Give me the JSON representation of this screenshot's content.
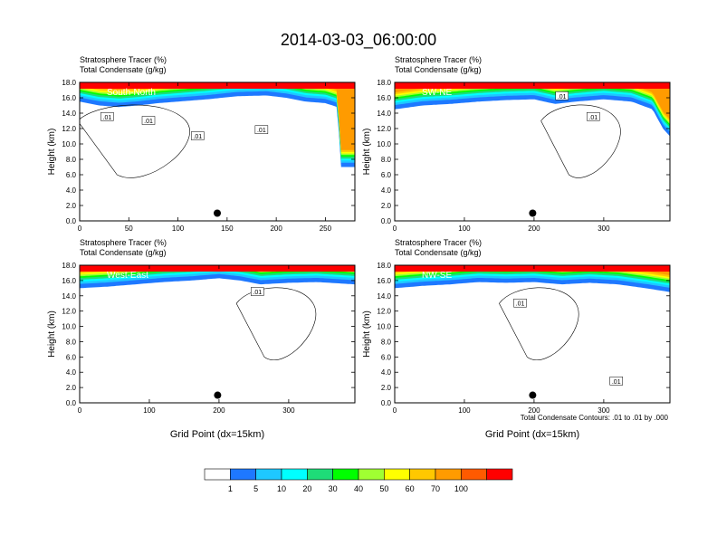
{
  "main_title": "2014-03-03_06:00:00",
  "footnote": "Total Condensate Contours: .01 to .01 by .000",
  "colorbar": {
    "levels": [
      "1",
      "5",
      "10",
      "20",
      "30",
      "40",
      "50",
      "60",
      "70",
      "100"
    ],
    "colors": [
      "#ffffff",
      "#1e78ff",
      "#1ec8ff",
      "#00ffff",
      "#1edc78",
      "#00ff00",
      "#a0ff32",
      "#ffff00",
      "#ffc800",
      "#ff9b00",
      "#ff5a00",
      "#ff0000"
    ]
  },
  "chart_data": [
    {
      "type": "heatmap",
      "label": "South-North",
      "title_lines": [
        "Stratosphere Tracer   (%)",
        "Total Condensate   (g/kg)"
      ],
      "ylabel": "Height (km)",
      "xlabel": "",
      "xlim": [
        0,
        280
      ],
      "ylim": [
        0,
        18
      ],
      "xticks": [
        "0",
        "50",
        "100",
        "150",
        "200",
        "250"
      ],
      "xtick_values": [
        0,
        50,
        100,
        150,
        200,
        250
      ],
      "yticks": [
        "0.0",
        "2.0",
        "4.0",
        "6.0",
        "8.0",
        "10.0",
        "12.0",
        "14.0",
        "16.0",
        "18.0"
      ],
      "contour_labels": [
        ".01",
        ".01",
        ".01",
        ".01"
      ],
      "contour_label_pos": [
        [
          28,
          13.5
        ],
        [
          70,
          13
        ],
        [
          120,
          11
        ],
        [
          185,
          11.8
        ]
      ],
      "marker": [
        140,
        1
      ],
      "tracer_bottom": [
        [
          0,
          15.5
        ],
        [
          20,
          15.0
        ],
        [
          40,
          14.8
        ],
        [
          60,
          15.0
        ],
        [
          80,
          15.3
        ],
        [
          100,
          15.5
        ],
        [
          130,
          15.8
        ],
        [
          160,
          16.2
        ],
        [
          190,
          16.3
        ],
        [
          210,
          16.0
        ],
        [
          230,
          15.5
        ],
        [
          250,
          15.3
        ],
        [
          262,
          14.8
        ],
        [
          266,
          7.0
        ],
        [
          280,
          7.0
        ]
      ]
    },
    {
      "type": "heatmap",
      "label": "SW-NE",
      "title_lines": [
        "Stratosphere Tracer   (%)",
        "Total Condensate   (g/kg)"
      ],
      "ylabel": "Height (km)",
      "xlabel": "",
      "xlim": [
        0,
        395
      ],
      "ylim": [
        0,
        18
      ],
      "xticks": [
        "0",
        "100",
        "200",
        "300"
      ],
      "xtick_values": [
        0,
        100,
        200,
        300
      ],
      "yticks": [
        "0.0",
        "2.0",
        "4.0",
        "6.0",
        "8.0",
        "10.0",
        "12.0",
        "14.0",
        "16.0",
        "18.0"
      ],
      "contour_labels": [
        ".01",
        ".01"
      ],
      "contour_label_pos": [
        [
          240,
          16.2
        ],
        [
          285,
          13.5
        ]
      ],
      "marker": [
        198,
        1
      ],
      "tracer_bottom": [
        [
          0,
          14.5
        ],
        [
          40,
          15.0
        ],
        [
          80,
          15.2
        ],
        [
          120,
          15.5
        ],
        [
          160,
          15.7
        ],
        [
          200,
          15.8
        ],
        [
          230,
          15.2
        ],
        [
          260,
          15.5
        ],
        [
          300,
          15.8
        ],
        [
          340,
          15.5
        ],
        [
          370,
          14.5
        ],
        [
          385,
          12.0
        ],
        [
          395,
          11.0
        ]
      ]
    },
    {
      "type": "heatmap",
      "label": "West-East",
      "title_lines": [
        "Stratosphere Tracer   (%)",
        "Total Condensate   (g/kg)"
      ],
      "ylabel": "Height (km)",
      "xlabel": "Grid Point (dx=15km)",
      "xlim": [
        0,
        395
      ],
      "ylim": [
        0,
        18
      ],
      "xticks": [
        "0",
        "100",
        "200",
        "300"
      ],
      "xtick_values": [
        0,
        100,
        200,
        300
      ],
      "yticks": [
        "0.0",
        "2.0",
        "4.0",
        "6.0",
        "8.0",
        "10.0",
        "12.0",
        "14.0",
        "16.0",
        "18.0"
      ],
      "contour_labels": [
        ".01"
      ],
      "contour_label_pos": [
        [
          255,
          14.5
        ]
      ],
      "marker": [
        198,
        1
      ],
      "tracer_bottom": [
        [
          0,
          15.0
        ],
        [
          40,
          15.2
        ],
        [
          80,
          15.5
        ],
        [
          120,
          15.8
        ],
        [
          160,
          16.0
        ],
        [
          200,
          16.3
        ],
        [
          230,
          16.0
        ],
        [
          260,
          15.5
        ],
        [
          300,
          15.7
        ],
        [
          340,
          15.8
        ],
        [
          395,
          15.5
        ]
      ]
    },
    {
      "type": "heatmap",
      "label": "NW-SE",
      "title_lines": [
        "Stratosphere Tracer   (%)",
        "Total Condensate   (g/kg)"
      ],
      "ylabel": "Height (km)",
      "xlabel": "Grid Point (dx=15km)",
      "xlim": [
        0,
        395
      ],
      "ylim": [
        0,
        18
      ],
      "xticks": [
        "0",
        "100",
        "200",
        "300"
      ],
      "xtick_values": [
        0,
        100,
        200,
        300
      ],
      "yticks": [
        "0.0",
        "2.0",
        "4.0",
        "6.0",
        "8.0",
        "10.0",
        "12.0",
        "14.0",
        "16.0",
        "18.0"
      ],
      "contour_labels": [
        ".01",
        ".01"
      ],
      "contour_label_pos": [
        [
          180,
          13
        ],
        [
          318,
          2.8
        ]
      ],
      "marker": [
        198,
        1
      ],
      "tracer_bottom": [
        [
          0,
          15.0
        ],
        [
          40,
          15.3
        ],
        [
          80,
          15.5
        ],
        [
          120,
          15.8
        ],
        [
          160,
          15.7
        ],
        [
          200,
          15.8
        ],
        [
          240,
          15.5
        ],
        [
          280,
          15.7
        ],
        [
          320,
          15.5
        ],
        [
          360,
          15.0
        ],
        [
          395,
          14.5
        ]
      ]
    }
  ]
}
